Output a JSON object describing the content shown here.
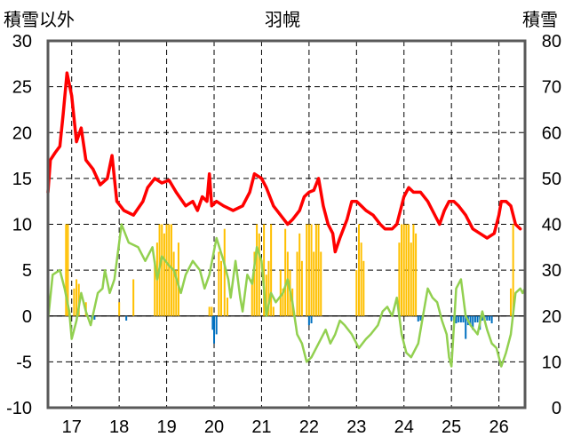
{
  "chart_data": {
    "type": "bar+line",
    "title": "羽幌",
    "left_axis_title": "積雪以外",
    "right_axis_title": "積雪",
    "x_tick_labels": [
      "17",
      "18",
      "19",
      "20",
      "21",
      "22",
      "23",
      "24",
      "25",
      "26"
    ],
    "x_range": [
      16.5,
      26.55
    ],
    "left_axis": {
      "min": -10,
      "max": 30,
      "ticks": [
        30,
        25,
        20,
        15,
        10,
        5,
        0,
        -5,
        -10
      ]
    },
    "right_axis": {
      "min": 0,
      "max": 80,
      "ticks": [
        80,
        70,
        60,
        50,
        40,
        30,
        20,
        10,
        0
      ]
    },
    "grid": true,
    "colors": {
      "red": "#ff0000",
      "green": "#92d050",
      "orange_bars": "#ffc000",
      "blue_bars": "#0070c0",
      "grid": "#000000"
    },
    "series": [
      {
        "axis": "left",
        "color": "#ff0000",
        "type": "line",
        "points": [
          [
            16.5,
            13.5
          ],
          [
            16.55,
            17.0
          ],
          [
            16.65,
            17.8
          ],
          [
            16.75,
            18.5
          ],
          [
            16.82,
            22.0
          ],
          [
            16.9,
            26.5
          ],
          [
            17.0,
            24.0
          ],
          [
            17.1,
            19.0
          ],
          [
            17.2,
            20.5
          ],
          [
            17.3,
            17.0
          ],
          [
            17.45,
            16.0
          ],
          [
            17.6,
            14.3
          ],
          [
            17.75,
            15.0
          ],
          [
            17.85,
            17.5
          ],
          [
            17.95,
            12.5
          ],
          [
            18.1,
            11.5
          ],
          [
            18.3,
            11.0
          ],
          [
            18.5,
            12.5
          ],
          [
            18.6,
            14.0
          ],
          [
            18.75,
            15.0
          ],
          [
            18.9,
            14.5
          ],
          [
            19.05,
            14.8
          ],
          [
            19.2,
            13.5
          ],
          [
            19.4,
            12.0
          ],
          [
            19.55,
            12.5
          ],
          [
            19.65,
            11.5
          ],
          [
            19.75,
            13.0
          ],
          [
            19.85,
            12.5
          ],
          [
            19.9,
            15.5
          ],
          [
            19.95,
            12.0
          ],
          [
            20.05,
            12.5
          ],
          [
            20.2,
            12.0
          ],
          [
            20.4,
            11.5
          ],
          [
            20.6,
            12.0
          ],
          [
            20.75,
            13.5
          ],
          [
            20.85,
            15.5
          ],
          [
            21.0,
            15.0
          ],
          [
            21.1,
            14.0
          ],
          [
            21.25,
            12.0
          ],
          [
            21.4,
            11.0
          ],
          [
            21.55,
            10.0
          ],
          [
            21.65,
            10.5
          ],
          [
            21.8,
            11.5
          ],
          [
            21.9,
            13.0
          ],
          [
            22.0,
            13.5
          ],
          [
            22.1,
            13.7
          ],
          [
            22.2,
            15.0
          ],
          [
            22.3,
            12.0
          ],
          [
            22.4,
            10.0
          ],
          [
            22.5,
            9.0
          ],
          [
            22.55,
            7.0
          ],
          [
            22.65,
            8.5
          ],
          [
            22.8,
            10.5
          ],
          [
            22.9,
            12.5
          ],
          [
            23.0,
            12.5
          ],
          [
            23.1,
            12.0
          ],
          [
            23.2,
            11.5
          ],
          [
            23.35,
            11.0
          ],
          [
            23.5,
            10.0
          ],
          [
            23.6,
            9.5
          ],
          [
            23.75,
            9.5
          ],
          [
            23.85,
            10.0
          ],
          [
            24.0,
            13.0
          ],
          [
            24.1,
            14.0
          ],
          [
            24.2,
            13.5
          ],
          [
            24.35,
            13.5
          ],
          [
            24.5,
            12.5
          ],
          [
            24.6,
            11.5
          ],
          [
            24.75,
            10.0
          ],
          [
            24.85,
            11.5
          ],
          [
            24.95,
            12.5
          ],
          [
            25.05,
            12.5
          ],
          [
            25.15,
            12.0
          ],
          [
            25.3,
            11.0
          ],
          [
            25.45,
            9.5
          ],
          [
            25.6,
            9.0
          ],
          [
            25.75,
            8.5
          ],
          [
            25.9,
            9.0
          ],
          [
            26.0,
            11.0
          ],
          [
            26.05,
            12.5
          ],
          [
            26.15,
            12.5
          ],
          [
            26.25,
            12.0
          ],
          [
            26.35,
            10.0
          ],
          [
            26.45,
            9.5
          ]
        ]
      },
      {
        "axis": "left",
        "color": "#92d050",
        "type": "line",
        "points": [
          [
            16.5,
            -0.5
          ],
          [
            16.6,
            4.5
          ],
          [
            16.75,
            5.0
          ],
          [
            16.85,
            3.0
          ],
          [
            16.95,
            0.5
          ],
          [
            17.0,
            -2.5
          ],
          [
            17.1,
            -0.5
          ],
          [
            17.2,
            2.5
          ],
          [
            17.3,
            0.5
          ],
          [
            17.4,
            -1.0
          ],
          [
            17.55,
            2.5
          ],
          [
            17.65,
            3.0
          ],
          [
            17.7,
            5.0
          ],
          [
            17.8,
            2.5
          ],
          [
            17.9,
            4.0
          ],
          [
            18.05,
            10.0
          ],
          [
            18.2,
            8.0
          ],
          [
            18.4,
            7.5
          ],
          [
            18.55,
            6.0
          ],
          [
            18.7,
            7.5
          ],
          [
            18.8,
            4.0
          ],
          [
            18.9,
            6.5
          ],
          [
            19.05,
            5.5
          ],
          [
            19.15,
            5.0
          ],
          [
            19.3,
            2.5
          ],
          [
            19.4,
            4.5
          ],
          [
            19.55,
            6.0
          ],
          [
            19.7,
            5.0
          ],
          [
            19.8,
            3.0
          ],
          [
            19.9,
            4.5
          ],
          [
            20.05,
            8.5
          ],
          [
            20.2,
            6.0
          ],
          [
            20.3,
            4.0
          ],
          [
            20.35,
            2.0
          ],
          [
            20.45,
            6.0
          ],
          [
            20.55,
            2.0
          ],
          [
            20.6,
            0.5
          ],
          [
            20.7,
            4.5
          ],
          [
            20.8,
            3.5
          ],
          [
            20.9,
            7.5
          ],
          [
            21.0,
            6.0
          ],
          [
            21.1,
            0.0
          ],
          [
            21.2,
            2.5
          ],
          [
            21.3,
            1.5
          ],
          [
            21.45,
            2.5
          ],
          [
            21.55,
            4.0
          ],
          [
            21.65,
            1.5
          ],
          [
            21.75,
            -2.0
          ],
          [
            21.85,
            -3.0
          ],
          [
            21.95,
            -5.0
          ],
          [
            22.05,
            -4.5
          ],
          [
            22.2,
            -3.0
          ],
          [
            22.35,
            -1.5
          ],
          [
            22.45,
            -3.0
          ],
          [
            22.55,
            -2.0
          ],
          [
            22.65,
            -0.5
          ],
          [
            22.75,
            -1.0
          ],
          [
            22.9,
            -2.0
          ],
          [
            23.05,
            -3.5
          ],
          [
            23.2,
            -2.5
          ],
          [
            23.3,
            -2.0
          ],
          [
            23.45,
            -1.0
          ],
          [
            23.55,
            0.5
          ],
          [
            23.65,
            1.0
          ],
          [
            23.75,
            0.0
          ],
          [
            23.85,
            2.0
          ],
          [
            23.95,
            -2.0
          ],
          [
            24.05,
            -4.0
          ],
          [
            24.15,
            -4.5
          ],
          [
            24.3,
            -3.0
          ],
          [
            24.4,
            0.0
          ],
          [
            24.5,
            3.0
          ],
          [
            24.6,
            2.0
          ],
          [
            24.7,
            1.5
          ],
          [
            24.8,
            -0.5
          ],
          [
            24.9,
            -2.0
          ],
          [
            24.95,
            -4.5
          ],
          [
            25.0,
            -5.5
          ],
          [
            25.1,
            3.0
          ],
          [
            25.2,
            4.0
          ],
          [
            25.3,
            0.0
          ],
          [
            25.4,
            -1.0
          ],
          [
            25.55,
            -2.0
          ],
          [
            25.65,
            0.5
          ],
          [
            25.75,
            -1.5
          ],
          [
            25.85,
            -3.0
          ],
          [
            25.95,
            -3.5
          ],
          [
            26.05,
            -5.5
          ],
          [
            26.15,
            -4.0
          ],
          [
            26.25,
            -2.0
          ],
          [
            26.35,
            2.5
          ],
          [
            26.45,
            3.0
          ],
          [
            26.5,
            2.5
          ],
          [
            26.55,
            3.0
          ]
        ]
      }
    ],
    "bars": {
      "axis": "left",
      "width_units": 0.02,
      "orange": [
        [
          16.88,
          10.0
        ],
        [
          16.92,
          10.0
        ],
        [
          17.05,
          3.0
        ],
        [
          17.1,
          4.0
        ],
        [
          17.15,
          3.5
        ],
        [
          17.3,
          1.5
        ],
        [
          18.0,
          1.5
        ],
        [
          18.3,
          4.0
        ],
        [
          18.75,
          6.0
        ],
        [
          18.8,
          8.0
        ],
        [
          18.85,
          10.0
        ],
        [
          18.9,
          10.0
        ],
        [
          18.95,
          9.0
        ],
        [
          19.0,
          10.0
        ],
        [
          19.05,
          10.0
        ],
        [
          19.1,
          10.0
        ],
        [
          19.15,
          7.0
        ],
        [
          19.2,
          5.0
        ],
        [
          19.25,
          8.0
        ],
        [
          19.9,
          1.0
        ],
        [
          19.95,
          1.0
        ],
        [
          20.1,
          7.0
        ],
        [
          20.15,
          6.0
        ],
        [
          20.22,
          9.5
        ],
        [
          20.28,
          2.0
        ],
        [
          20.8,
          4.0
        ],
        [
          20.85,
          7.0
        ],
        [
          20.9,
          10.0
        ],
        [
          20.95,
          9.0
        ],
        [
          21.05,
          10.0
        ],
        [
          21.1,
          4.5
        ],
        [
          21.15,
          6.0
        ],
        [
          21.2,
          10.0
        ],
        [
          21.25,
          1.0
        ],
        [
          21.4,
          5.0
        ],
        [
          21.45,
          3.0
        ],
        [
          21.5,
          9.5
        ],
        [
          21.55,
          7.0
        ],
        [
          21.6,
          5.0
        ],
        [
          21.65,
          3.0
        ],
        [
          21.75,
          7.0
        ],
        [
          21.8,
          9.0
        ],
        [
          21.85,
          6.0
        ],
        [
          21.95,
          10.0
        ],
        [
          22.0,
          10.0
        ],
        [
          22.05,
          10.0
        ],
        [
          22.1,
          7.0
        ],
        [
          22.15,
          10.0
        ],
        [
          22.2,
          10.0
        ],
        [
          22.25,
          7.0
        ],
        [
          23.0,
          5.0
        ],
        [
          23.05,
          10.0
        ],
        [
          23.1,
          8.0
        ],
        [
          23.15,
          6.0
        ],
        [
          23.9,
          8.0
        ],
        [
          23.95,
          10.0
        ],
        [
          24.0,
          10.0
        ],
        [
          24.05,
          10.0
        ],
        [
          24.1,
          10.0
        ],
        [
          24.15,
          8.0
        ],
        [
          24.2,
          10.0
        ],
        [
          24.25,
          9.0
        ],
        [
          26.25,
          3.0
        ],
        [
          26.3,
          10.0
        ]
      ],
      "blue": [
        [
          17.42,
          -0.5
        ],
        [
          17.48,
          -0.4
        ],
        [
          18.15,
          -0.5
        ],
        [
          19.97,
          -1.5
        ],
        [
          20.0,
          -3.0
        ],
        [
          20.05,
          -2.0
        ],
        [
          22.0,
          -1.0
        ],
        [
          22.05,
          -0.8
        ],
        [
          24.3,
          -0.6
        ],
        [
          24.35,
          -0.5
        ],
        [
          25.0,
          -0.5
        ],
        [
          25.05,
          -0.5
        ],
        [
          25.1,
          -0.8
        ],
        [
          25.15,
          -0.7
        ],
        [
          25.2,
          -0.7
        ],
        [
          25.25,
          -0.7
        ],
        [
          25.3,
          -2.5
        ],
        [
          25.35,
          -1.0
        ],
        [
          25.4,
          -1.0
        ],
        [
          25.45,
          -1.5
        ],
        [
          25.5,
          -0.7
        ],
        [
          25.55,
          -0.7
        ],
        [
          25.6,
          -1.5
        ],
        [
          25.65,
          -0.5
        ],
        [
          25.7,
          -0.5
        ],
        [
          25.75,
          -0.5
        ],
        [
          25.8,
          -0.5
        ],
        [
          25.85,
          -0.8
        ]
      ]
    }
  }
}
